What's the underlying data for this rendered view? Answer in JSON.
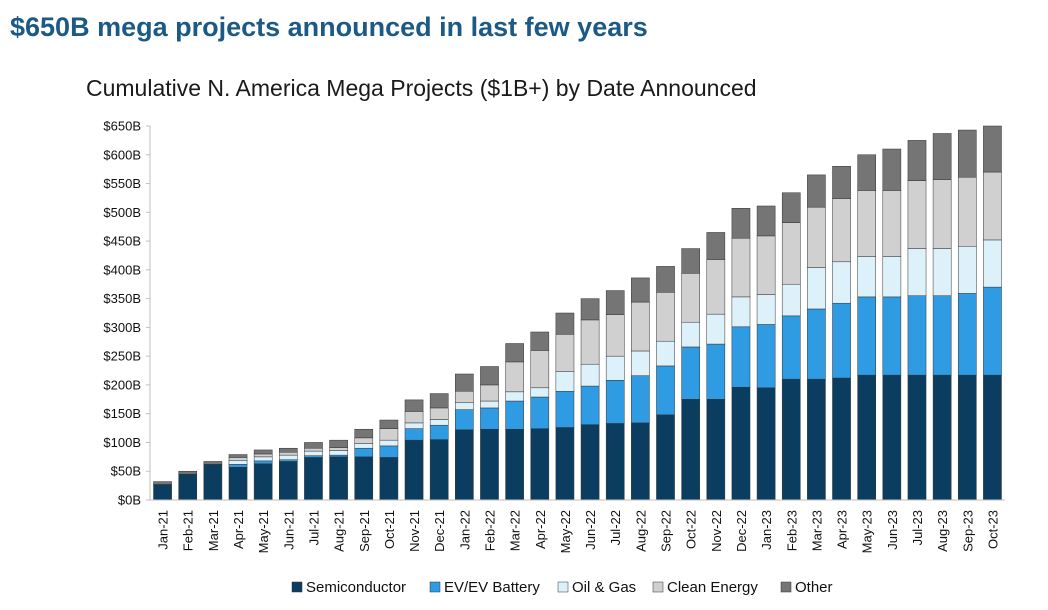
{
  "headline": "$650B mega projects announced in last few years",
  "chart_data": {
    "type": "bar",
    "stacked": true,
    "title": "Cumulative N. America Mega Projects ($1B+) by Date Announced",
    "xlabel": "",
    "ylabel": "",
    "ylim": [
      0,
      650
    ],
    "y_ticks": [
      "$0B",
      "$50B",
      "$100B",
      "$150B",
      "$200B",
      "$250B",
      "$300B",
      "$350B",
      "$400B",
      "$450B",
      "$500B",
      "$550B",
      "$600B",
      "$650B"
    ],
    "categories": [
      "Jan-21",
      "Feb-21",
      "Mar-21",
      "Apr-21",
      "May-21",
      "Jun-21",
      "Jul-21",
      "Aug-21",
      "Sep-21",
      "Oct-21",
      "Nov-21",
      "Dec-21",
      "Jan-22",
      "Feb-22",
      "Mar-22",
      "Apr-22",
      "May-22",
      "Jun-22",
      "Jul-22",
      "Aug-22",
      "Sep-22",
      "Oct-22",
      "Nov-22",
      "Dec-22",
      "Jan-23",
      "Feb-23",
      "Mar-23",
      "Apr-23",
      "May-23",
      "Jun-23",
      "Jul-23",
      "Aug-23",
      "Sep-23",
      "Oct-23"
    ],
    "series": [
      {
        "name": "Semiconductor",
        "color": "#0b3d61",
        "values": [
          27,
          45,
          62,
          57,
          63,
          67,
          74,
          75,
          75,
          74,
          104,
          105,
          122,
          123,
          123,
          124,
          126,
          131,
          133,
          134,
          148,
          175,
          175,
          196,
          195,
          210,
          210,
          212,
          217,
          217,
          217,
          217,
          217,
          217
        ]
      },
      {
        "name": "EV/EV Battery",
        "color": "#2f9be3",
        "values": [
          0,
          0,
          0,
          5,
          5,
          3,
          3,
          3,
          15,
          20,
          20,
          25,
          35,
          37,
          49,
          55,
          63,
          67,
          75,
          82,
          85,
          91,
          96,
          105,
          110,
          110,
          122,
          130,
          136,
          136,
          138,
          138,
          142,
          153
        ]
      },
      {
        "name": "Oil & Gas",
        "color": "#ddf1fb",
        "values": [
          0,
          0,
          0,
          7,
          7,
          8,
          8,
          8,
          8,
          10,
          10,
          10,
          12,
          12,
          16,
          16,
          34,
          38,
          42,
          43,
          43,
          43,
          52,
          52,
          52,
          55,
          72,
          72,
          70,
          70,
          82,
          82,
          82,
          82
        ]
      },
      {
        "name": "Clean Energy",
        "color": "#d0d0d0",
        "values": [
          0,
          0,
          0,
          5,
          5,
          5,
          5,
          5,
          10,
          20,
          20,
          20,
          20,
          28,
          52,
          65,
          65,
          77,
          72,
          85,
          85,
          85,
          95,
          102,
          102,
          107,
          105,
          110,
          115,
          115,
          118,
          120,
          120,
          118
        ]
      },
      {
        "name": "Other",
        "color": "#757575",
        "values": [
          5,
          5,
          5,
          5,
          7,
          7,
          10,
          13,
          15,
          15,
          20,
          25,
          30,
          32,
          32,
          32,
          37,
          37,
          42,
          42,
          45,
          43,
          47,
          52,
          52,
          52,
          56,
          56,
          62,
          72,
          70,
          80,
          82,
          80
        ]
      }
    ],
    "legend": {
      "position": "bottom"
    },
    "grid": false
  }
}
